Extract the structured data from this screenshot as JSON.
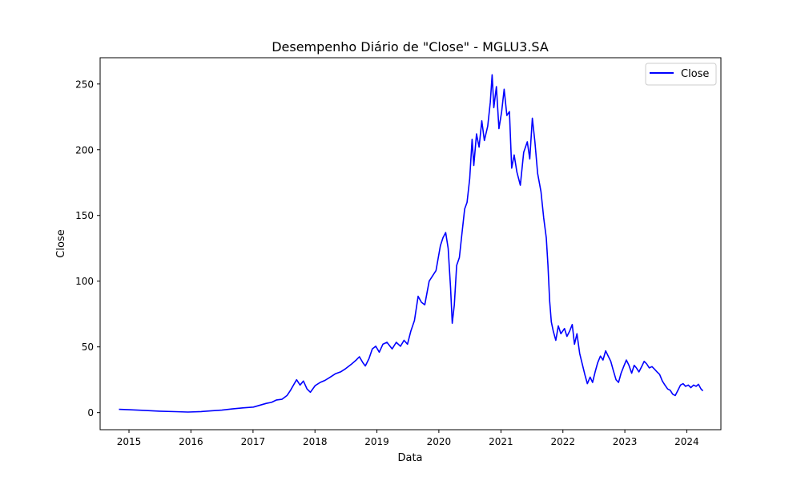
{
  "chart_data": {
    "type": "line",
    "title": "Desempenho Diário de \"Close\" - MGLU3.SA",
    "xlabel": "Data",
    "ylabel": "Close",
    "xlim": [
      "2014-07-15",
      "2024-07-20"
    ],
    "ylim": [
      -13,
      270
    ],
    "x_ticks": [
      "2015",
      "2016",
      "2017",
      "2018",
      "2019",
      "2020",
      "2021",
      "2022",
      "2023",
      "2024"
    ],
    "y_ticks": [
      "0",
      "50",
      "100",
      "150",
      "200",
      "250"
    ],
    "legend": {
      "position": "top-right",
      "entries": [
        "Close"
      ]
    },
    "grid": false,
    "colors": {
      "line": "#0000ff"
    },
    "series": [
      {
        "name": "Close",
        "points": [
          [
            "2014-11-03",
            2.5
          ],
          [
            "2015-01-01",
            2.2
          ],
          [
            "2015-04-01",
            1.7
          ],
          [
            "2015-07-01",
            1.1
          ],
          [
            "2015-10-01",
            0.7
          ],
          [
            "2015-12-15",
            0.4
          ],
          [
            "2016-03-01",
            0.8
          ],
          [
            "2016-05-01",
            1.4
          ],
          [
            "2016-07-01",
            1.9
          ],
          [
            "2016-09-01",
            2.8
          ],
          [
            "2016-11-01",
            3.6
          ],
          [
            "2017-01-03",
            4.2
          ],
          [
            "2017-02-15",
            5.8
          ],
          [
            "2017-03-20",
            7.0
          ],
          [
            "2017-04-20",
            7.8
          ],
          [
            "2017-05-20",
            9.6
          ],
          [
            "2017-06-20",
            10.1
          ],
          [
            "2017-07-20",
            13.0
          ],
          [
            "2017-08-10",
            17.0
          ],
          [
            "2017-09-01",
            22.0
          ],
          [
            "2017-09-15",
            25.0
          ],
          [
            "2017-10-05",
            21.0
          ],
          [
            "2017-10-25",
            24.0
          ],
          [
            "2017-11-15",
            18.0
          ],
          [
            "2017-12-05",
            15.5
          ],
          [
            "2018-01-02",
            20.5
          ],
          [
            "2018-02-01",
            23.0
          ],
          [
            "2018-03-01",
            24.5
          ],
          [
            "2018-04-01",
            27.0
          ],
          [
            "2018-05-01",
            29.5
          ],
          [
            "2018-06-01",
            31.0
          ],
          [
            "2018-07-01",
            33.5
          ],
          [
            "2018-08-01",
            36.5
          ],
          [
            "2018-09-01",
            40.0
          ],
          [
            "2018-09-20",
            42.5
          ],
          [
            "2018-10-10",
            38.0
          ],
          [
            "2018-10-25",
            35.5
          ],
          [
            "2018-11-15",
            41.0
          ],
          [
            "2018-12-05",
            48.5
          ],
          [
            "2018-12-25",
            50.5
          ],
          [
            "2019-01-15",
            46.0
          ],
          [
            "2019-02-05",
            52.0
          ],
          [
            "2019-03-01",
            53.5
          ],
          [
            "2019-04-01",
            48.5
          ],
          [
            "2019-04-25",
            53.5
          ],
          [
            "2019-05-20",
            50.5
          ],
          [
            "2019-06-10",
            55.0
          ],
          [
            "2019-06-30",
            52.0
          ],
          [
            "2019-07-20",
            62.0
          ],
          [
            "2019-08-10",
            70.0
          ],
          [
            "2019-09-01",
            88.5
          ],
          [
            "2019-09-20",
            84.0
          ],
          [
            "2019-10-10",
            82.0
          ],
          [
            "2019-11-05",
            100.0
          ],
          [
            "2019-11-25",
            104.0
          ],
          [
            "2019-12-15",
            108.0
          ],
          [
            "2020-01-10",
            127.0
          ],
          [
            "2020-01-25",
            133.0
          ],
          [
            "2020-02-10",
            137.0
          ],
          [
            "2020-02-25",
            125.0
          ],
          [
            "2020-03-10",
            95.0
          ],
          [
            "2020-03-20",
            68.0
          ],
          [
            "2020-04-01",
            82.0
          ],
          [
            "2020-04-15",
            112.0
          ],
          [
            "2020-05-01",
            118.0
          ],
          [
            "2020-05-15",
            135.0
          ],
          [
            "2020-06-01",
            155.0
          ],
          [
            "2020-06-15",
            160.0
          ],
          [
            "2020-07-01",
            178.0
          ],
          [
            "2020-07-15",
            208.0
          ],
          [
            "2020-07-25",
            188.0
          ],
          [
            "2020-08-10",
            212.0
          ],
          [
            "2020-08-25",
            202.0
          ],
          [
            "2020-09-10",
            222.0
          ],
          [
            "2020-09-25",
            207.0
          ],
          [
            "2020-10-15",
            218.0
          ],
          [
            "2020-10-30",
            236.0
          ],
          [
            "2020-11-10",
            257.0
          ],
          [
            "2020-11-20",
            232.0
          ],
          [
            "2020-12-05",
            248.0
          ],
          [
            "2020-12-20",
            216.0
          ],
          [
            "2021-01-05",
            229.0
          ],
          [
            "2021-01-20",
            246.0
          ],
          [
            "2021-02-05",
            226.0
          ],
          [
            "2021-02-20",
            229.0
          ],
          [
            "2021-03-05",
            186.0
          ],
          [
            "2021-03-20",
            196.0
          ],
          [
            "2021-04-05",
            183.0
          ],
          [
            "2021-04-25",
            173.0
          ],
          [
            "2021-05-15",
            198.0
          ],
          [
            "2021-06-05",
            206.0
          ],
          [
            "2021-06-20",
            193.0
          ],
          [
            "2021-07-05",
            224.0
          ],
          [
            "2021-07-20",
            206.0
          ],
          [
            "2021-08-05",
            182.0
          ],
          [
            "2021-08-25",
            168.0
          ],
          [
            "2021-09-10",
            148.0
          ],
          [
            "2021-09-25",
            133.0
          ],
          [
            "2021-10-05",
            112.0
          ],
          [
            "2021-10-15",
            85.0
          ],
          [
            "2021-10-25",
            69.0
          ],
          [
            "2021-11-05",
            62.0
          ],
          [
            "2021-11-20",
            55.0
          ],
          [
            "2021-12-05",
            66.0
          ],
          [
            "2021-12-20",
            60.0
          ],
          [
            "2022-01-10",
            64.0
          ],
          [
            "2022-01-25",
            58.0
          ],
          [
            "2022-02-10",
            62.0
          ],
          [
            "2022-02-25",
            67.0
          ],
          [
            "2022-03-10",
            52.0
          ],
          [
            "2022-03-25",
            60.0
          ],
          [
            "2022-04-10",
            45.0
          ],
          [
            "2022-04-25",
            37.0
          ],
          [
            "2022-05-10",
            29.0
          ],
          [
            "2022-05-25",
            22.0
          ],
          [
            "2022-06-10",
            27.0
          ],
          [
            "2022-06-25",
            23.0
          ],
          [
            "2022-07-10",
            31.0
          ],
          [
            "2022-07-25",
            38.0
          ],
          [
            "2022-08-10",
            43.0
          ],
          [
            "2022-08-25",
            40.0
          ],
          [
            "2022-09-10",
            47.0
          ],
          [
            "2022-09-25",
            43.0
          ],
          [
            "2022-10-10",
            39.0
          ],
          [
            "2022-10-25",
            32.0
          ],
          [
            "2022-11-10",
            25.0
          ],
          [
            "2022-11-25",
            23.0
          ],
          [
            "2022-12-10",
            30.0
          ],
          [
            "2022-12-25",
            35.0
          ],
          [
            "2023-01-10",
            40.0
          ],
          [
            "2023-01-25",
            36.0
          ],
          [
            "2023-02-10",
            30.0
          ],
          [
            "2023-02-25",
            36.0
          ],
          [
            "2023-03-10",
            34.0
          ],
          [
            "2023-03-25",
            31.0
          ],
          [
            "2023-04-10",
            35.0
          ],
          [
            "2023-04-25",
            39.0
          ],
          [
            "2023-05-10",
            37.0
          ],
          [
            "2023-05-25",
            34.0
          ],
          [
            "2023-06-10",
            35.0
          ],
          [
            "2023-06-25",
            33.0
          ],
          [
            "2023-07-10",
            31.0
          ],
          [
            "2023-07-25",
            29.0
          ],
          [
            "2023-08-10",
            24.0
          ],
          [
            "2023-08-25",
            21.0
          ],
          [
            "2023-09-10",
            18.0
          ],
          [
            "2023-09-25",
            17.0
          ],
          [
            "2023-10-10",
            14.0
          ],
          [
            "2023-10-25",
            13.0
          ],
          [
            "2023-11-10",
            17.0
          ],
          [
            "2023-11-25",
            21.0
          ],
          [
            "2023-12-10",
            22.0
          ],
          [
            "2023-12-25",
            20.0
          ],
          [
            "2024-01-10",
            21.0
          ],
          [
            "2024-01-25",
            19.0
          ],
          [
            "2024-02-10",
            21.0
          ],
          [
            "2024-02-25",
            20.0
          ],
          [
            "2024-03-10",
            21.5
          ],
          [
            "2024-03-25",
            18.0
          ],
          [
            "2024-04-05",
            16.5
          ]
        ]
      }
    ]
  }
}
